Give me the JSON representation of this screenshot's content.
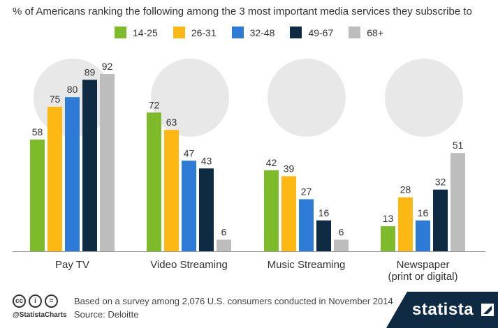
{
  "header": {
    "subtitle": "% of Americans ranking the following among the 3 most important media services they subscribe to"
  },
  "footer": {
    "note": "Based on a survey among 2,076 U.S. consumers conducted in November 2014",
    "source": "Source: Deloitte",
    "handle": "@StatistaCharts",
    "brand": "statista",
    "license_icons": [
      "cc",
      "i",
      "="
    ]
  },
  "colors": {
    "14-25": "#7dbb2a",
    "26-31": "#fdb813",
    "32-48": "#2e7bd6",
    "49-67": "#0f2a43",
    "68+": "#bdbdbd",
    "axis": "#999999",
    "brand_band": "#0f2a43"
  },
  "chart_data": {
    "type": "bar",
    "title": "% of Americans ranking the following among the 3 most important media services they subscribe to",
    "categories": [
      "Pay TV",
      "Video Streaming",
      "Music Streaming",
      "Newspaper\n(print or digital)"
    ],
    "category_icons": [
      "tv-icon",
      "video-streaming-icon",
      "music-player-icon",
      "newspaper-icon"
    ],
    "series": [
      {
        "name": "14-25",
        "values": [
          58,
          72,
          42,
          13
        ]
      },
      {
        "name": "26-31",
        "values": [
          75,
          63,
          39,
          28
        ]
      },
      {
        "name": "32-48",
        "values": [
          80,
          47,
          27,
          16
        ]
      },
      {
        "name": "49-67",
        "values": [
          89,
          43,
          16,
          32
        ]
      },
      {
        "name": "68+",
        "values": [
          92,
          6,
          6,
          51
        ]
      }
    ],
    "ylim": [
      0,
      100
    ],
    "xlabel": "",
    "ylabel": "",
    "legend": "top-center",
    "grid": false
  }
}
